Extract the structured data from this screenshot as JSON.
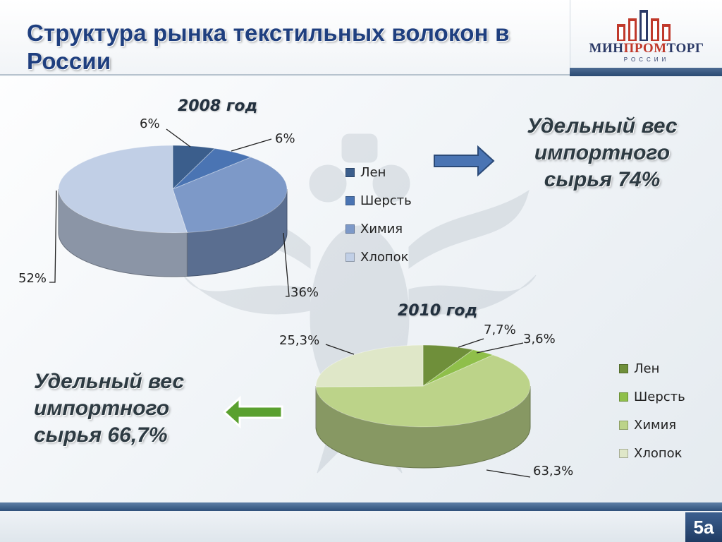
{
  "slide": {
    "title": "Структура рынка текстильных волокон в России",
    "page_number": "5а"
  },
  "logo": {
    "text_left": "МИН",
    "text_mid": "ПРОМ",
    "text_right": "ТОРГ",
    "subtitle": "РОССИИ"
  },
  "callouts": {
    "right": "Удельный вес импортного сырья 74%",
    "left": "Удельный вес импортного сырья 66,7%"
  },
  "colors": {
    "title": "#1f3f7f",
    "blue_shades": [
      "#3b5e8c",
      "#4a74b3",
      "#7d99c8",
      "#c1cfe6"
    ],
    "green_shades": [
      "#6f8f3a",
      "#8fbf4a",
      "#bcd389",
      "#dfe7c8"
    ]
  },
  "chart_data": [
    {
      "type": "pie",
      "title": "2008 год",
      "categories": [
        "Лен",
        "Шерсть",
        "Химия",
        "Хлопок"
      ],
      "values": [
        6,
        6,
        36,
        52
      ],
      "data_labels": [
        "6%",
        "6%",
        "36%",
        "52%"
      ],
      "legend": [
        "Лен",
        "Шерсть",
        "Химия",
        "Хлопок"
      ],
      "legend_position": "right"
    },
    {
      "type": "pie",
      "title": "2010 год",
      "categories": [
        "Лен",
        "Шерсть",
        "Химия",
        "Хлопок"
      ],
      "values": [
        7.7,
        3.6,
        63.3,
        25.3
      ],
      "data_labels": [
        "7,7%",
        "3,6%",
        "63,3%",
        "25,3%"
      ],
      "legend": [
        "Лен",
        "Шерсть",
        "Химия",
        "Хлопок"
      ],
      "legend_position": "right"
    }
  ]
}
